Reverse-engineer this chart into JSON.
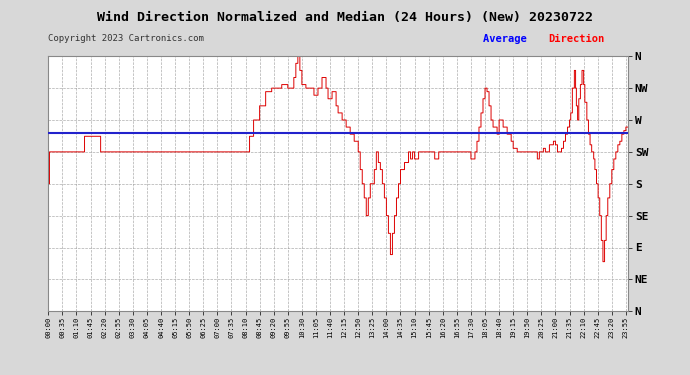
{
  "title": "Wind Direction Normalized and Median (24 Hours) (New) 20230722",
  "copyright": "Copyright 2023 Cartronics.com",
  "legend_label": "Average Direction",
  "background_color": "#d8d8d8",
  "plot_bg_color": "#ffffff",
  "line_color": "#dd0000",
  "avg_line_color": "#2222cc",
  "grid_color": "#999999",
  "title_color": "#000000",
  "copyright_color": "#333333",
  "legend_color_avg": "#0000ff",
  "legend_color_dir": "#cc0000",
  "ytick_labels": [
    "N",
    "NW",
    "W",
    "SW",
    "S",
    "SE",
    "E",
    "NE",
    "N"
  ],
  "ytick_values": [
    360,
    315,
    270,
    225,
    180,
    135,
    90,
    45,
    0
  ],
  "ylim": [
    0,
    360
  ],
  "avg_direction": 252,
  "time_labels": [
    "00:00",
    "00:35",
    "01:10",
    "01:45",
    "02:20",
    "02:55",
    "03:30",
    "04:05",
    "04:40",
    "05:15",
    "05:50",
    "06:25",
    "07:00",
    "07:35",
    "08:10",
    "08:45",
    "09:20",
    "09:55",
    "10:30",
    "11:05",
    "11:40",
    "12:15",
    "12:50",
    "13:25",
    "14:00",
    "14:35",
    "15:10",
    "15:45",
    "16:20",
    "16:55",
    "17:30",
    "18:05",
    "18:40",
    "19:15",
    "19:50",
    "20:25",
    "21:00",
    "21:35",
    "22:10",
    "22:45",
    "23:20",
    "23:55"
  ]
}
